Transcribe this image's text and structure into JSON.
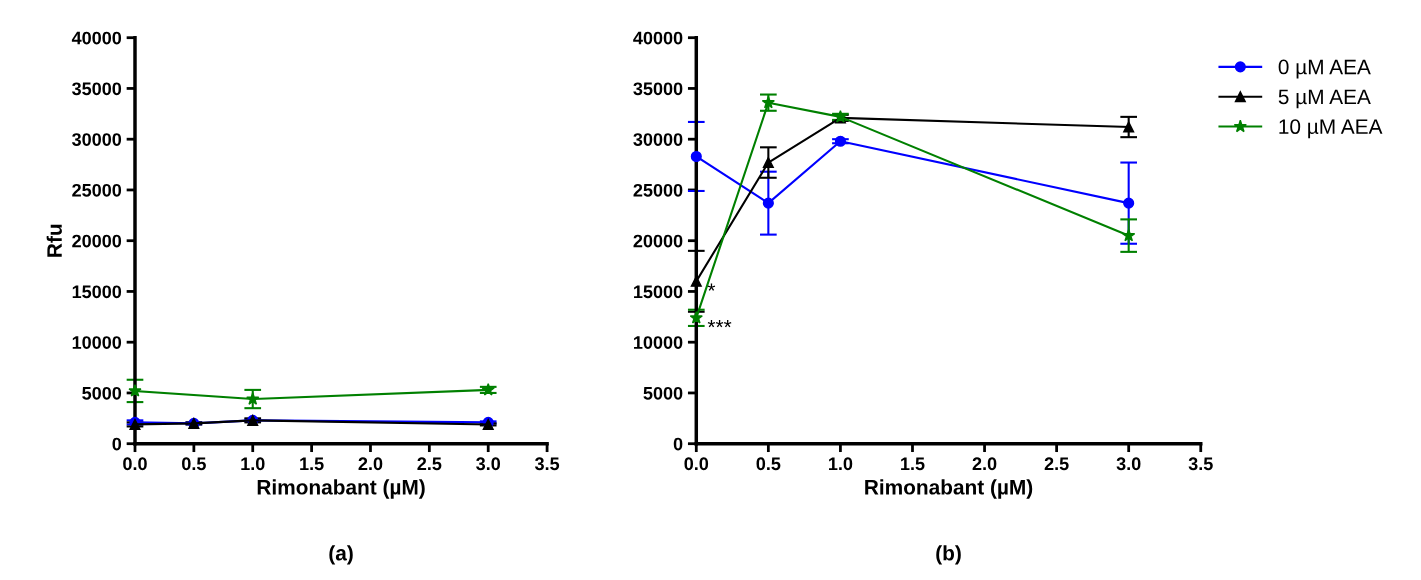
{
  "chart_data": [
    {
      "type": "line",
      "xlabel": "Rimonabant (µM)",
      "ylabel": "Rfu",
      "annotations": [
        "(a)"
      ],
      "x": [
        0,
        0.5,
        1,
        3
      ],
      "xlim": [
        0,
        3.5
      ],
      "xticks": [
        {
          "value": 0,
          "label": "0.0"
        },
        0.5,
        {
          "value": 1,
          "label": "1.0"
        },
        1.5,
        {
          "value": 2,
          "label": "2.0"
        },
        2.5,
        {
          "value": 3,
          "label": "3.0"
        },
        3.5
      ],
      "ylim": [
        0,
        40000
      ],
      "yticks": [
        0,
        5000,
        10000,
        15000,
        20000,
        25000,
        30000,
        35000,
        40000
      ],
      "grid": false,
      "legend": false,
      "series": [
        {
          "color": "#0000ff",
          "marker": "circle",
          "values": [
            2100,
            2000,
            2300,
            2100
          ],
          "errors": [
            200,
            100,
            100,
            100
          ]
        },
        {
          "color": "#000000",
          "marker": "triangle",
          "values": [
            1900,
            2000,
            2300,
            1900
          ],
          "errors": [
            200,
            100,
            200,
            100
          ]
        },
        {
          "color": "#008000",
          "marker": "star",
          "values": [
            5200,
            null,
            4400,
            5300
          ],
          "errors": [
            1100,
            null,
            900,
            300
          ]
        }
      ]
    },
    {
      "type": "line",
      "xlabel": "Rimonabant (µM)",
      "annotations": [
        "(b)",
        {
          "text": "*",
          "x": 0,
          "y": 16000
        },
        {
          "text": "***",
          "x": 0,
          "y": 12400
        }
      ],
      "x": [
        0,
        0.5,
        1,
        3
      ],
      "xlim": [
        0,
        3.5
      ],
      "xticks": [
        {
          "value": 0,
          "label": "0.0"
        },
        0.5,
        {
          "value": 1,
          "label": "1.0"
        },
        1.5,
        {
          "value": 2,
          "label": "2.0"
        },
        2.5,
        {
          "value": 3,
          "label": "3.0"
        },
        3.5
      ],
      "ylim": [
        0,
        40000
      ],
      "yticks": [
        0,
        5000,
        10000,
        15000,
        20000,
        25000,
        30000,
        35000,
        40000
      ],
      "grid": false,
      "legend": "right",
      "series": [
        {
          "name": "0 µM AEA",
          "color": "#0000ff",
          "marker": "circle",
          "values": [
            28300,
            23700,
            29800,
            23700
          ],
          "errors": [
            3400,
            3100,
            200,
            4000
          ]
        },
        {
          "name": "5 µM AEA",
          "color": "#000000",
          "marker": "triangle",
          "values": [
            16000,
            27700,
            32100,
            31200
          ],
          "errors": [
            3000,
            1500,
            300,
            1000
          ]
        },
        {
          "name": "10 µM AEA",
          "color": "#008000",
          "marker": "star",
          "values": [
            12400,
            33600,
            32200,
            20500
          ],
          "errors": [
            800,
            800,
            300,
            1600
          ]
        }
      ]
    }
  ]
}
